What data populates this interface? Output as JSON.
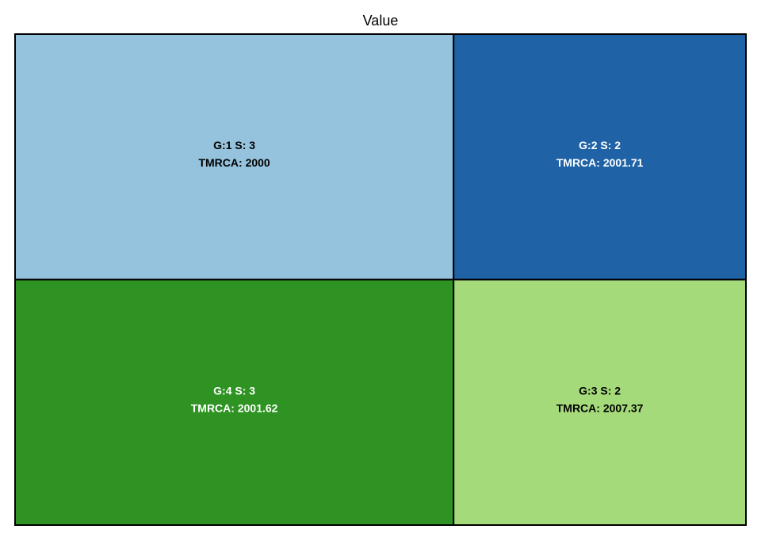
{
  "chart_data": {
    "type": "treemap",
    "title": "Value",
    "tiles": [
      {
        "label": "G:1 S: 3",
        "sublabel": "TMRCA: 2000",
        "value": 3,
        "color": "#95c2dc",
        "text_color": "#000000"
      },
      {
        "label": "G:2 S: 2",
        "sublabel": "TMRCA: 2001.71",
        "value": 2,
        "color": "#1f63a6",
        "text_color": "#ffffff"
      },
      {
        "label": "G:4 S: 3",
        "sublabel": "TMRCA: 2001.62",
        "value": 3,
        "color": "#2e9322",
        "text_color": "#ffffff"
      },
      {
        "label": "G:3 S: 2",
        "sublabel": "TMRCA: 2007.37",
        "value": 2,
        "color": "#a5da7a",
        "text_color": "#000000"
      }
    ],
    "border_color": "#000000"
  }
}
